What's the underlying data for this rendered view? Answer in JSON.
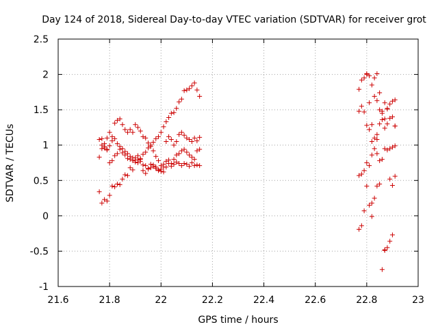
{
  "chart_data": {
    "type": "scatter",
    "title": "Day 124 of 2018, Sidereal Day-to-day VTEC variation (SDTVAR) for receiver grot",
    "xlabel": "GPS time / hours",
    "ylabel": "SDTVAR / TECUs",
    "xlim": [
      21.6,
      23.0
    ],
    "ylim": [
      -1.0,
      2.5
    ],
    "xticks": [
      21.6,
      21.8,
      22.0,
      22.2,
      22.4,
      22.6,
      22.8,
      23.0
    ],
    "xtick_labels": [
      "21.6",
      "21.8",
      "22",
      "22.2",
      "22.4",
      "22.6",
      "22.8",
      "23"
    ],
    "yticks": [
      -1.0,
      -0.5,
      0.0,
      0.5,
      1.0,
      1.5,
      2.0,
      2.5
    ],
    "ytick_labels": [
      "-1",
      "-0.5",
      "0",
      "0.5",
      "1",
      "1.5",
      "2",
      "2.5"
    ],
    "grid": true,
    "marker": "+",
    "color": "#cc0000",
    "series": [
      {
        "name": "SDTVAR",
        "points": [
          [
            21.76,
            0.34
          ],
          [
            21.77,
            0.18
          ],
          [
            21.78,
            0.23
          ],
          [
            21.79,
            0.21
          ],
          [
            21.8,
            0.29
          ],
          [
            21.81,
            0.42
          ],
          [
            21.82,
            0.41
          ],
          [
            21.83,
            0.45
          ],
          [
            21.84,
            0.44
          ],
          [
            21.85,
            0.52
          ],
          [
            21.86,
            0.58
          ],
          [
            21.87,
            0.57
          ],
          [
            21.88,
            0.68
          ],
          [
            21.89,
            0.65
          ],
          [
            21.9,
            0.76
          ],
          [
            21.91,
            0.79
          ],
          [
            21.92,
            0.8
          ],
          [
            21.93,
            0.87
          ],
          [
            21.94,
            0.9
          ],
          [
            21.95,
            0.96
          ],
          [
            21.96,
            1.0
          ],
          [
            21.97,
            1.04
          ],
          [
            21.98,
            1.09
          ],
          [
            21.99,
            1.12
          ],
          [
            22.0,
            1.18
          ],
          [
            22.01,
            1.26
          ],
          [
            22.02,
            1.33
          ],
          [
            22.03,
            1.39
          ],
          [
            22.04,
            1.45
          ],
          [
            22.05,
            1.46
          ],
          [
            22.06,
            1.52
          ],
          [
            22.07,
            1.61
          ],
          [
            22.08,
            1.65
          ],
          [
            22.09,
            1.77
          ],
          [
            22.1,
            1.78
          ],
          [
            22.11,
            1.8
          ],
          [
            22.12,
            1.84
          ],
          [
            22.13,
            1.88
          ],
          [
            22.14,
            1.78
          ],
          [
            22.15,
            1.69
          ],
          [
            21.76,
            1.08
          ],
          [
            21.77,
            1.09
          ],
          [
            21.78,
            1.02
          ],
          [
            21.79,
            1.1
          ],
          [
            21.8,
            1.18
          ],
          [
            21.81,
            1.12
          ],
          [
            21.82,
            1.31
          ],
          [
            21.83,
            1.35
          ],
          [
            21.84,
            1.37
          ],
          [
            21.85,
            1.29
          ],
          [
            21.86,
            1.22
          ],
          [
            21.87,
            1.18
          ],
          [
            21.88,
            1.22
          ],
          [
            21.89,
            1.18
          ],
          [
            21.9,
            1.29
          ],
          [
            21.91,
            1.25
          ],
          [
            21.92,
            1.2
          ],
          [
            21.93,
            1.12
          ],
          [
            21.94,
            1.1
          ],
          [
            21.95,
            1.03
          ],
          [
            21.96,
            0.98
          ],
          [
            21.97,
            0.92
          ],
          [
            21.98,
            0.84
          ],
          [
            21.99,
            0.78
          ],
          [
            22.0,
            0.71
          ],
          [
            22.01,
            0.73
          ],
          [
            22.02,
            0.69
          ],
          [
            22.03,
            0.74
          ],
          [
            22.04,
            0.7
          ],
          [
            22.05,
            0.73
          ],
          [
            22.06,
            0.76
          ],
          [
            22.07,
            0.74
          ],
          [
            22.08,
            0.71
          ],
          [
            22.09,
            0.74
          ],
          [
            22.1,
            0.73
          ],
          [
            22.11,
            0.7
          ],
          [
            22.12,
            0.75
          ],
          [
            22.13,
            0.71
          ],
          [
            22.14,
            0.72
          ],
          [
            22.15,
            0.71
          ],
          [
            21.76,
            0.83
          ],
          [
            21.77,
            0.95
          ],
          [
            21.78,
            0.96
          ],
          [
            21.79,
            0.93
          ],
          [
            21.8,
            0.75
          ],
          [
            21.81,
            0.78
          ],
          [
            21.82,
            0.85
          ],
          [
            21.83,
            0.88
          ],
          [
            21.84,
            0.94
          ],
          [
            21.85,
            0.89
          ],
          [
            21.86,
            0.91
          ],
          [
            21.87,
            0.88
          ],
          [
            21.88,
            0.84
          ],
          [
            21.89,
            0.82
          ],
          [
            21.9,
            0.79
          ],
          [
            21.91,
            0.75
          ],
          [
            21.92,
            0.77
          ],
          [
            21.93,
            0.72
          ],
          [
            21.94,
            0.71
          ],
          [
            21.95,
            0.66
          ],
          [
            21.96,
            0.68
          ],
          [
            21.97,
            0.7
          ],
          [
            21.98,
            0.67
          ],
          [
            21.99,
            0.64
          ],
          [
            22.0,
            0.66
          ],
          [
            22.01,
            0.69
          ],
          [
            22.02,
            0.77
          ],
          [
            22.03,
            0.79
          ],
          [
            22.04,
            0.74
          ],
          [
            22.05,
            0.8
          ],
          [
            22.06,
            0.86
          ],
          [
            22.07,
            0.88
          ],
          [
            22.08,
            0.92
          ],
          [
            22.09,
            0.94
          ],
          [
            22.1,
            0.9
          ],
          [
            22.11,
            0.86
          ],
          [
            22.12,
            0.83
          ],
          [
            22.13,
            0.8
          ],
          [
            22.14,
            0.92
          ],
          [
            22.15,
            0.94
          ],
          [
            21.77,
            1.0
          ],
          [
            21.78,
            0.98
          ],
          [
            21.79,
            0.94
          ],
          [
            21.8,
            0.99
          ],
          [
            21.81,
            1.06
          ],
          [
            21.82,
            1.09
          ],
          [
            21.83,
            1.02
          ],
          [
            21.84,
            0.98
          ],
          [
            21.85,
            0.95
          ],
          [
            21.86,
            0.86
          ],
          [
            21.87,
            0.81
          ],
          [
            21.88,
            0.8
          ],
          [
            21.89,
            0.78
          ],
          [
            21.9,
            0.82
          ],
          [
            21.91,
            0.85
          ],
          [
            21.92,
            0.81
          ],
          [
            21.93,
            0.64
          ],
          [
            21.94,
            0.6
          ],
          [
            21.95,
            0.67
          ],
          [
            21.96,
            0.73
          ],
          [
            21.97,
            0.72
          ],
          [
            21.98,
            0.69
          ],
          [
            21.99,
            0.65
          ],
          [
            22.0,
            0.63
          ],
          [
            22.01,
            0.62
          ],
          [
            22.02,
            1.05
          ],
          [
            22.03,
            1.12
          ],
          [
            22.04,
            1.08
          ],
          [
            22.05,
            1.0
          ],
          [
            22.06,
            1.05
          ],
          [
            22.07,
            1.15
          ],
          [
            22.08,
            1.18
          ],
          [
            22.09,
            1.14
          ],
          [
            22.1,
            1.1
          ],
          [
            22.11,
            1.08
          ],
          [
            22.12,
            1.05
          ],
          [
            22.13,
            1.1
          ],
          [
            22.14,
            1.06
          ],
          [
            22.15,
            1.11
          ],
          [
            22.77,
            1.79
          ],
          [
            22.78,
            1.92
          ],
          [
            22.79,
            1.95
          ],
          [
            22.8,
            2.0
          ],
          [
            22.81,
            1.98
          ],
          [
            22.82,
            1.85
          ],
          [
            22.83,
            1.69
          ],
          [
            22.84,
            1.63
          ],
          [
            22.85,
            1.5
          ],
          [
            22.86,
            1.48
          ],
          [
            22.87,
            1.6
          ],
          [
            22.88,
            1.51
          ],
          [
            22.89,
            1.38
          ],
          [
            22.9,
            1.4
          ],
          [
            22.91,
            1.27
          ],
          [
            22.77,
            1.48
          ],
          [
            22.78,
            1.55
          ],
          [
            22.79,
            1.47
          ],
          [
            22.8,
            1.28
          ],
          [
            22.81,
            1.22
          ],
          [
            22.82,
            1.05
          ],
          [
            22.83,
            0.95
          ],
          [
            22.84,
            0.88
          ],
          [
            22.85,
            0.78
          ],
          [
            22.86,
            0.8
          ],
          [
            22.87,
            0.95
          ],
          [
            22.88,
            0.93
          ],
          [
            22.89,
            0.95
          ],
          [
            22.9,
            0.97
          ],
          [
            22.91,
            0.99
          ],
          [
            22.77,
            0.57
          ],
          [
            22.78,
            0.59
          ],
          [
            22.79,
            0.64
          ],
          [
            22.8,
            0.75
          ],
          [
            22.81,
            0.71
          ],
          [
            22.82,
            0.86
          ],
          [
            22.83,
            1.1
          ],
          [
            22.84,
            1.15
          ],
          [
            22.85,
            1.3
          ],
          [
            22.86,
            1.45
          ],
          [
            22.87,
            1.37
          ],
          [
            22.88,
            1.52
          ],
          [
            22.89,
            1.58
          ],
          [
            22.9,
            1.62
          ],
          [
            22.91,
            1.64
          ],
          [
            22.77,
            -0.19
          ],
          [
            22.78,
            -0.14
          ],
          [
            22.79,
            0.07
          ],
          [
            22.8,
            0.42
          ],
          [
            22.81,
            0.15
          ],
          [
            22.82,
            0.18
          ],
          [
            22.83,
            0.25
          ],
          [
            22.84,
            0.42
          ],
          [
            22.85,
            0.45
          ],
          [
            22.86,
            -0.76
          ],
          [
            22.87,
            -0.49
          ],
          [
            22.88,
            -0.45
          ],
          [
            22.89,
            -0.36
          ],
          [
            22.9,
            -0.27
          ],
          [
            22.91,
            0.56
          ],
          [
            22.8,
            2.01
          ],
          [
            22.81,
            1.6
          ],
          [
            22.82,
            1.29
          ],
          [
            22.83,
            1.95
          ],
          [
            22.84,
            2.01
          ],
          [
            22.85,
            1.74
          ],
          [
            22.86,
            1.36
          ],
          [
            22.87,
            1.24
          ],
          [
            22.88,
            1.3
          ],
          [
            22.89,
            0.52
          ],
          [
            22.9,
            0.43
          ],
          [
            22.91,
            1.27
          ],
          [
            22.82,
            -0.01
          ],
          [
            22.84,
            1.08
          ],
          [
            22.87,
            -0.48
          ]
        ]
      }
    ]
  }
}
